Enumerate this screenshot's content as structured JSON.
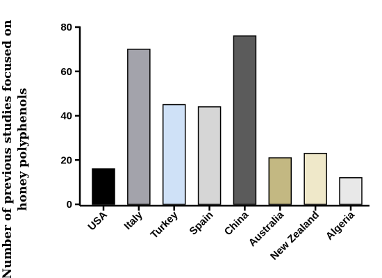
{
  "chart_data": {
    "type": "bar",
    "title": "",
    "xlabel": "",
    "ylabel_lines": [
      "Number of previous studies focused on",
      "honey polyphenols"
    ],
    "ylim": [
      0,
      80
    ],
    "yticks": [
      "0",
      "20",
      "40",
      "60",
      "80"
    ],
    "categories": [
      "USA",
      "Italy",
      "Turkey",
      "Spain",
      "China",
      "Australia",
      "New Zealand",
      "Algeria"
    ],
    "values": [
      16,
      70,
      45,
      44,
      76,
      21,
      23,
      12
    ],
    "colors": [
      "#000000",
      "#a3a3ab",
      "#cfe1f7",
      "#d6d6d6",
      "#5b5b5b",
      "#c3b882",
      "#efe8c9",
      "#e8e8e8"
    ],
    "grid": false,
    "legend": "none"
  }
}
